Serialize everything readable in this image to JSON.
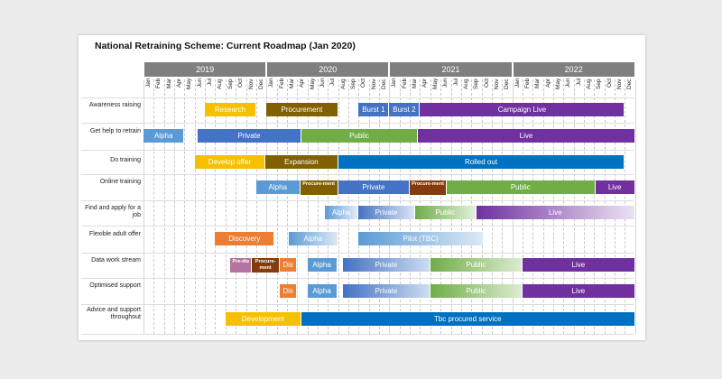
{
  "title": "National Retraining Scheme: Current Roadmap (Jan 2020)",
  "years": [
    "2019",
    "2020",
    "2021",
    "2022"
  ],
  "months": [
    "Jan",
    "Feb",
    "Mar",
    "Apr",
    "May",
    "Jun",
    "Jul",
    "Aug",
    "Sep",
    "Oct",
    "Nov",
    "Dec"
  ],
  "colors": {
    "yellow": "#f5c000",
    "olive": "#806000",
    "blue": "#4472c4",
    "purple": "#7030a0",
    "lightblue": "#5b9bd5",
    "green": "#70ad47",
    "orange": "#ed7d31",
    "darkblue": "#0070c0",
    "brown": "#843c0c",
    "mauve": "#b4749f"
  },
  "rows": [
    {
      "label": "Awareness raising",
      "bars": [
        {
          "label": "Research",
          "start": 6,
          "end": 11,
          "color": "#f5c000"
        },
        {
          "label": "Procurement",
          "start": 12,
          "end": 19,
          "color": "#806000"
        },
        {
          "label": "Burst 1",
          "start": 21,
          "end": 24,
          "color": "#4472c4"
        },
        {
          "label": "Burst 2",
          "start": 24,
          "end": 27,
          "color": "#4472c4"
        },
        {
          "label": "Campaign Live",
          "start": 27,
          "end": 47,
          "color": "#7030a0"
        }
      ]
    },
    {
      "label": "Get help to retrain",
      "bars": [
        {
          "label": "Alpha",
          "start": 0,
          "end": 4,
          "color": "#5b9bd5"
        },
        {
          "label": "Private",
          "start": 5.3,
          "end": 15.4,
          "color": "#4472c4"
        },
        {
          "label": "Public",
          "start": 15.4,
          "end": 26.8,
          "color": "#70ad47"
        },
        {
          "label": "Live",
          "start": 26.8,
          "end": 48,
          "color": "#7030a0"
        }
      ]
    },
    {
      "label": "Do training",
      "bars": [
        {
          "label": "Develop offer",
          "start": 5,
          "end": 11.9,
          "color": "#f5c000"
        },
        {
          "label": "Expansion",
          "start": 11.9,
          "end": 19,
          "color": "#806000"
        },
        {
          "label": "Rolled out",
          "start": 19,
          "end": 47,
          "color": "#0070c0"
        }
      ]
    },
    {
      "label": "Online training",
      "bars": [
        {
          "label": "Alpha",
          "start": 11,
          "end": 15.3,
          "color": "#5b9bd5"
        },
        {
          "label": "Procure-ment",
          "start": 15.3,
          "end": 19,
          "color": "#806000",
          "small": true
        },
        {
          "label": "Private",
          "start": 19,
          "end": 26,
          "color": "#4472c4"
        },
        {
          "label": "Procure-ment",
          "start": 26,
          "end": 29.6,
          "color": "#843c0c",
          "small": true
        },
        {
          "label": "Public",
          "start": 29.6,
          "end": 44.1,
          "color": "#70ad47"
        },
        {
          "label": "Live",
          "start": 44.1,
          "end": 48,
          "color": "#7030a0"
        }
      ]
    },
    {
      "label": "Find and apply for a job",
      "bars": [
        {
          "label": "Alpha",
          "start": 17.7,
          "end": 21,
          "color": "#5b9bd5",
          "fade": "#e4ecf7"
        },
        {
          "label": "Private",
          "start": 21,
          "end": 26.5,
          "color": "#4472c4",
          "fade": "#dbe5f5"
        },
        {
          "label": "Public",
          "start": 26.5,
          "end": 32.5,
          "color": "#70ad47",
          "fade": "#e3f0da"
        },
        {
          "label": "Live",
          "start": 32.5,
          "end": 48,
          "color": "#7030a0",
          "fade": "#ece3f3"
        }
      ]
    },
    {
      "label": "Flexible adult offer",
      "bars": [
        {
          "label": "Discovery",
          "start": 7,
          "end": 12.8,
          "color": "#ed7d31"
        },
        {
          "label": "Alpha",
          "start": 14.2,
          "end": 19,
          "color": "#5b9bd5",
          "fade": "#dde9f6"
        },
        {
          "label": "Pilot (TBC)",
          "start": 21,
          "end": 33.2,
          "color": "#5b9bd5",
          "fade": "#dde9f6"
        }
      ]
    },
    {
      "label": "Data work stream",
      "bars": [
        {
          "label": "Pre-dis",
          "start": 8.5,
          "end": 10.6,
          "color": "#b4749f",
          "small": true
        },
        {
          "label": "Procure-ment",
          "start": 10.6,
          "end": 13.3,
          "color": "#843c0c",
          "small": true
        },
        {
          "label": "Dis",
          "start": 13.3,
          "end": 15,
          "color": "#ed7d31"
        },
        {
          "label": "Alpha",
          "start": 16,
          "end": 18.9,
          "color": "#5b9bd5"
        },
        {
          "label": "Private",
          "start": 19.5,
          "end": 28,
          "color": "#4472c4",
          "fade": "#cddcf1"
        },
        {
          "label": "Public",
          "start": 28,
          "end": 37,
          "color": "#70ad47",
          "fade": "#dcebd1"
        },
        {
          "label": "Live",
          "start": 37,
          "end": 48,
          "color": "#7030a0"
        }
      ]
    },
    {
      "label": "Optimised support",
      "bars": [
        {
          "label": "Dis",
          "start": 13.3,
          "end": 15,
          "color": "#ed7d31"
        },
        {
          "label": "Alpha",
          "start": 16,
          "end": 18.9,
          "color": "#5b9bd5"
        },
        {
          "label": "Private",
          "start": 19.5,
          "end": 28,
          "color": "#4472c4",
          "fade": "#cddcf1"
        },
        {
          "label": "Public",
          "start": 28,
          "end": 37,
          "color": "#70ad47",
          "fade": "#dcebd1"
        },
        {
          "label": "Live",
          "start": 37,
          "end": 48,
          "color": "#7030a0"
        }
      ]
    },
    {
      "label": "Advice and support throughout",
      "bars": [
        {
          "label": "Development",
          "start": 8,
          "end": 15.4,
          "color": "#f5c000"
        },
        {
          "label": "Tbc procured service",
          "start": 15.4,
          "end": 48,
          "color": "#0070c0"
        }
      ]
    }
  ]
}
